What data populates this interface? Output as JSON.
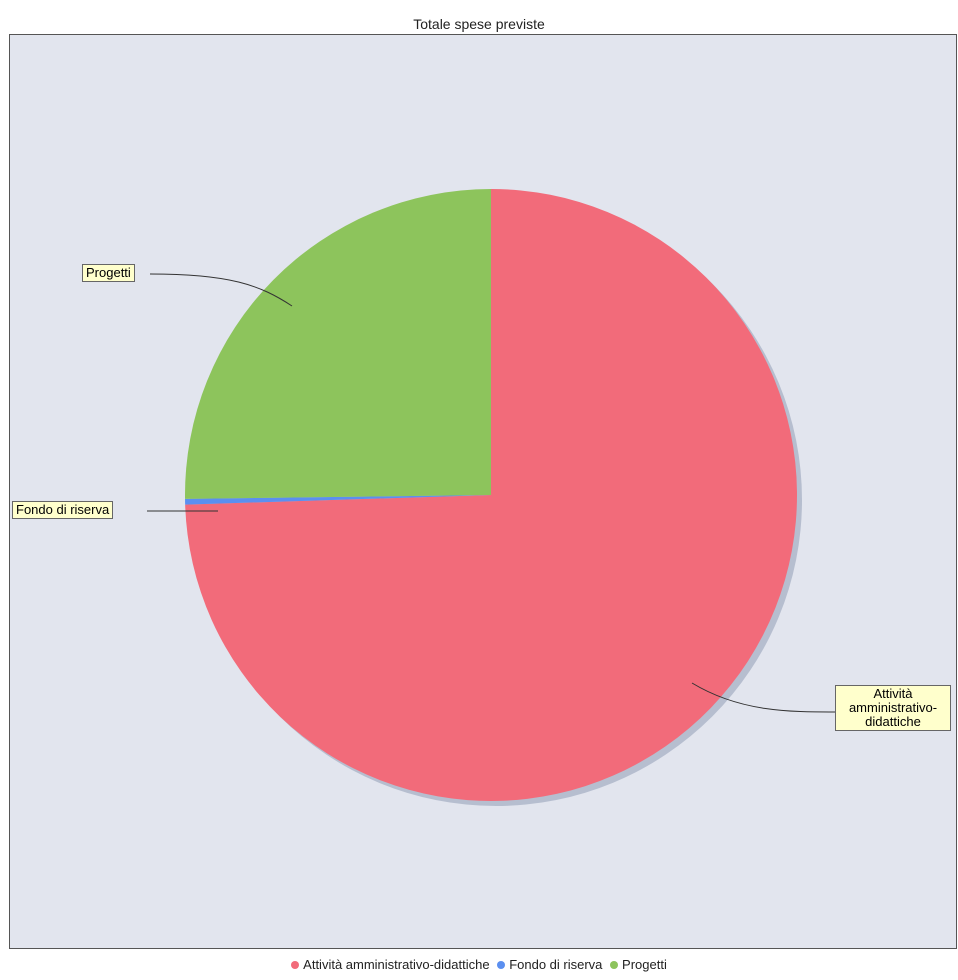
{
  "chart_data": {
    "type": "pie",
    "title": "Totale spese previste",
    "categories": [
      "Attività amministrativo-didattiche",
      "Fondo di riserva",
      "Progetti"
    ],
    "values": [
      74.5,
      0.3,
      25.2
    ],
    "colors": [
      "#f26b7a",
      "#5b8ff0",
      "#8dc45c"
    ],
    "labels": {
      "attivita_line1": "Attività",
      "attivita_line2": "amministrativo-",
      "attivita_line3": "didattiche",
      "fondo": "Fondo di riserva",
      "progetti": "Progetti"
    },
    "legend_position": "bottom",
    "legend": [
      "Attività amministrativo-didattiche",
      "Fondo di riserva",
      "Progetti"
    ]
  }
}
